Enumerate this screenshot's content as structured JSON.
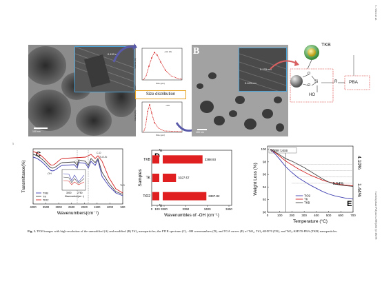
{
  "page": {
    "side_author": "L. Chen et al.",
    "side_journal": "Carbohydrate Polymers 268 (2021) 118278",
    "page_number": "5"
  },
  "panel_a": {
    "inset_label": "0.133 nm",
    "scale_bar": "100 nm"
  },
  "size_dist": {
    "label": "Size distribution",
    "top_legend": "~size (%)",
    "top_xlabel": "Size (μm)",
    "top_ylabel": "Volume (%)",
    "bottom_legend": "~size",
    "bottom_xlabel": "Size (μm)",
    "bottom_ylabel": "Volume (%)"
  },
  "panel_b": {
    "letter": "B",
    "inset_label1": "0.133 nm",
    "inset_label2": "0.423 nm",
    "scale_bar": "100 nm",
    "tkb": "TKB",
    "pba": "PBA",
    "si": "Si",
    "r": "R",
    "o1": "O",
    "o2": "O",
    "ho": "HO"
  },
  "chart_data": [
    {
      "id": "C",
      "type": "line",
      "letter": "C",
      "xlabel": "Wavenumbers(cm⁻¹)",
      "ylabel": "Transmittance(%)",
      "xticks": [
        "4000",
        "3500",
        "3000",
        "2500",
        "2000",
        "1500",
        "1000",
        "500"
      ],
      "xlim": [
        4000,
        400
      ],
      "legend": [
        "TKB",
        "TK",
        "TiO2"
      ],
      "colors": {
        "TKB": "#3b3bb0",
        "TK": "#444444",
        "TiO2": "#d42020"
      },
      "annotations": [
        "C-O",
        "Ti-O-Si",
        "-OH",
        "C=O",
        "C-H",
        "C-H₂",
        "C-H₃",
        "Ti-O"
      ],
      "inset_xticks": [
        "3000",
        "2750"
      ],
      "inset_xlabel": "Wavenumber(cm⁻¹)"
    },
    {
      "id": "D",
      "type": "bar",
      "letter": "D",
      "categories": [
        "TKB",
        "TK",
        "TiO2"
      ],
      "values": [
        3388.93,
        3327.57,
        3397.82
      ],
      "value_labels": [
        "3388.93",
        "3327.57",
        "3397.82"
      ],
      "xlabel": "Wavenumbles of -OH (cm⁻¹)",
      "ylabel": "Samples",
      "xticks": [
        "0",
        "100",
        "3300",
        "3350",
        "3400",
        "3450"
      ],
      "xlim": [
        3300,
        3450
      ],
      "color": "#e02020"
    },
    {
      "id": "E",
      "type": "line",
      "letter": "E",
      "xlabel": "Temperature (°C)",
      "ylabel": "Weight Loss (%)",
      "xticks": [
        "0",
        "100",
        "200",
        "300",
        "400",
        "500",
        "600",
        "700"
      ],
      "yticks": [
        "90",
        "92",
        "94",
        "96",
        "98",
        "100"
      ],
      "xlim": [
        0,
        700
      ],
      "ylim": [
        90,
        100.5
      ],
      "legend": [
        "TiO2",
        "TK",
        "TKB"
      ],
      "colors": {
        "TiO2": "#3b3bb0",
        "TK": "#d42020",
        "TKB": "#444444"
      },
      "annotations": {
        "water_loss": "Water Loss",
        "right1": "4.10%",
        "right2": "1.44%",
        "inner": "5.54%"
      },
      "series": [
        {
          "name": "TiO2",
          "x": [
            25,
            60,
            100,
            150,
            200,
            250,
            300,
            350,
            400,
            450,
            500,
            550,
            600,
            650,
            700
          ],
          "y": [
            100,
            99.3,
            98.4,
            97.2,
            96.3,
            95.5,
            94.9,
            94.3,
            93.8,
            93.3,
            92.9,
            92.6,
            92.4,
            92.2,
            92.1
          ]
        },
        {
          "name": "TK",
          "x": [
            25,
            60,
            100,
            150,
            200,
            250,
            300,
            350,
            400,
            450,
            500,
            550,
            600,
            650,
            700
          ],
          "y": [
            100,
            99.5,
            98.9,
            98.1,
            97.5,
            96.9,
            96.4,
            95.9,
            95.5,
            95.1,
            94.8,
            94.6,
            94.4,
            94.3,
            94.2
          ]
        },
        {
          "name": "TKB",
          "x": [
            25,
            60,
            100,
            150,
            200,
            250,
            300,
            350,
            400,
            450,
            500,
            550,
            600,
            650,
            700
          ],
          "y": [
            100,
            99.6,
            99.1,
            98.5,
            98.1,
            97.6,
            97.1,
            96.5,
            95.9,
            95.3,
            94.8,
            94.5,
            94.3,
            94.2,
            94.1
          ]
        }
      ]
    }
  ],
  "caption": {
    "fig_label": "Fig. 1.",
    "text": "TEM images with high-resolution of the unmodified (A) and modified (B) TiO₂ nanoparticles; the FTIR spectrum (C), -OH wavenumbers (D), and TGA curves (E) of TiO₂, TiO₂-KH570 (TK), and TiO₂-KH570-PBA (TKB) nanoparticles."
  }
}
